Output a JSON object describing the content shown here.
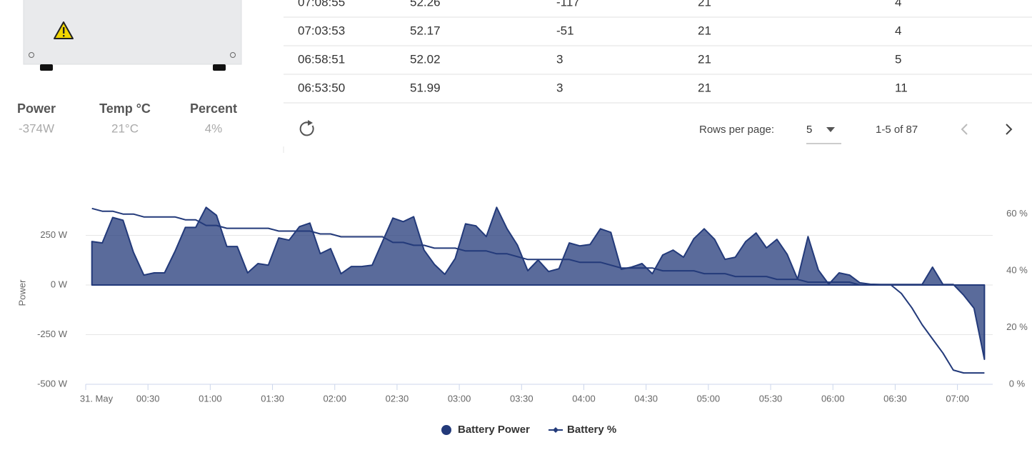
{
  "device_stats": [
    {
      "label": "Power",
      "value": "-374W"
    },
    {
      "label": "Temp °C",
      "value": "21°C"
    },
    {
      "label": "Percent",
      "value": "4%"
    }
  ],
  "table": {
    "rows": [
      [
        "07:08:55",
        "52.26",
        "-117",
        "21",
        "4"
      ],
      [
        "07:03:53",
        "52.17",
        "-51",
        "21",
        "4"
      ],
      [
        "06:58:51",
        "52.02",
        "3",
        "21",
        "5"
      ],
      [
        "06:53:50",
        "51.99",
        "3",
        "21",
        "11"
      ]
    ]
  },
  "pagination": {
    "rows_per_page_label": "Rows per page:",
    "rows_per_page": "5",
    "range": "1-5 of 87"
  },
  "chart_data": {
    "type": "combo",
    "y_axis_label": "Power",
    "x": [
      "00:03",
      "00:08",
      "00:13",
      "00:18",
      "00:23",
      "00:28",
      "00:33",
      "00:38",
      "00:43",
      "00:48",
      "00:53",
      "00:58",
      "01:03",
      "01:08",
      "01:13",
      "01:18",
      "01:23",
      "01:28",
      "01:33",
      "01:38",
      "01:43",
      "01:48",
      "01:53",
      "01:58",
      "02:03",
      "02:08",
      "02:13",
      "02:18",
      "02:23",
      "02:28",
      "02:33",
      "02:38",
      "02:43",
      "02:48",
      "02:53",
      "02:58",
      "03:03",
      "03:08",
      "03:13",
      "03:18",
      "03:23",
      "03:28",
      "03:33",
      "03:38",
      "03:43",
      "03:48",
      "03:53",
      "03:58",
      "04:03",
      "04:08",
      "04:13",
      "04:18",
      "04:23",
      "04:28",
      "04:33",
      "04:38",
      "04:43",
      "04:48",
      "04:53",
      "04:58",
      "05:03",
      "05:08",
      "05:13",
      "05:18",
      "05:23",
      "05:28",
      "05:33",
      "05:38",
      "05:43",
      "05:48",
      "05:53",
      "05:58",
      "06:03",
      "06:08",
      "06:13",
      "06:18",
      "06:23",
      "06:28",
      "06:33",
      "06:38",
      "06:43",
      "06:48",
      "06:53",
      "06:58",
      "07:03",
      "07:08",
      "07:13"
    ],
    "series": [
      {
        "name": "Battery Power",
        "type": "area",
        "color": "#233a7a",
        "values": [
          219,
          212,
          340,
          326,
          165,
          50,
          61,
          61,
          169,
          290,
          290,
          391,
          351,
          194,
          194,
          61,
          108,
          100,
          237,
          226,
          294,
          312,
          158,
          183,
          57,
          93,
          93,
          100,
          219,
          337,
          319,
          344,
          176,
          104,
          54,
          133,
          308,
          298,
          244,
          391,
          283,
          201,
          72,
          126,
          68,
          82,
          212,
          197,
          204,
          283,
          265,
          79,
          90,
          108,
          57,
          151,
          176,
          140,
          233,
          283,
          230,
          129,
          140,
          219,
          262,
          187,
          230,
          154,
          29,
          244,
          75,
          4,
          61,
          50,
          11,
          4,
          3,
          3,
          3,
          3,
          3,
          90,
          3,
          3,
          -51,
          -117,
          -374
        ]
      },
      {
        "name": "Battery %",
        "type": "line",
        "axis": "y2",
        "color": "#233a7a",
        "values": [
          62,
          61,
          61,
          60,
          60,
          59,
          59,
          59,
          59,
          58,
          58,
          56,
          56,
          55,
          55,
          55,
          55,
          55,
          54,
          54,
          54,
          54,
          53,
          53,
          52,
          52,
          52,
          52,
          52,
          50,
          50,
          49,
          49,
          48,
          48,
          48,
          47,
          47,
          47,
          46,
          46,
          45,
          44,
          44,
          44,
          44,
          44,
          43,
          43,
          43,
          42,
          41,
          41,
          41,
          41,
          40,
          40,
          40,
          40,
          39,
          39,
          39,
          38,
          38,
          38,
          38,
          37,
          37,
          37,
          36,
          36,
          36,
          36,
          36,
          35,
          35,
          35,
          35,
          32,
          27,
          21,
          16,
          11,
          5,
          4,
          4,
          4
        ]
      }
    ],
    "xlim": [
      "00:00",
      "07:17"
    ],
    "xticks": [
      {
        "value": "00:00",
        "label": "31. May"
      },
      "00:30",
      "01:00",
      "01:30",
      "02:00",
      "02:30",
      "03:00",
      "03:30",
      "04:00",
      "04:30",
      "05:00",
      "05:30",
      "06:00",
      "06:30",
      "07:00"
    ],
    "ylim": [
      -500,
      500
    ],
    "yticks": [
      {
        "value": -500,
        "label": "-500 W"
      },
      {
        "value": -250,
        "label": "-250 W"
      },
      {
        "value": 0,
        "label": "0 W"
      },
      {
        "value": 250,
        "label": "250 W"
      }
    ],
    "y2lim": [
      0,
      70
    ],
    "y2ticks": [
      {
        "value": 0,
        "label": "0 %"
      },
      {
        "value": 20,
        "label": "20 %"
      },
      {
        "value": 40,
        "label": "40 %"
      },
      {
        "value": 60,
        "label": "60 %"
      }
    ],
    "grid": true,
    "legend": "bottom"
  }
}
